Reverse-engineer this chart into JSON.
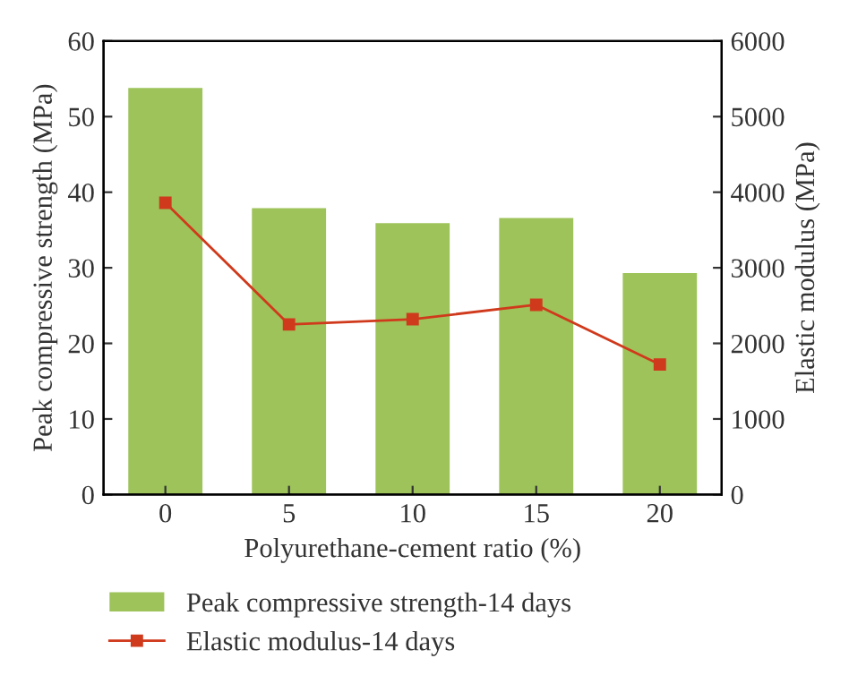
{
  "chart_data": {
    "type": "bar",
    "xlabel": "Polyurethane-cement ratio (%)",
    "ylabel": "Peak compressive strength (MPa)",
    "y2label": "Elastic modulus (MPa)",
    "categories": [
      "0",
      "5",
      "10",
      "15",
      "20"
    ],
    "series": [
      {
        "name": "Peak compressive strength-14 days",
        "color": "#9dc35a",
        "values": [
          53.8,
          37.9,
          35.9,
          36.6,
          29.3
        ]
      },
      {
        "name": "Elastic modulus-14 days",
        "type": "line",
        "axis": "y2",
        "color": "#d03a1c",
        "marker": "square",
        "values": [
          3860,
          2250,
          2320,
          2510,
          1720
        ]
      }
    ],
    "ylim": [
      0,
      60
    ],
    "yticks": [
      0,
      10,
      20,
      30,
      40,
      50,
      60
    ],
    "y2lim": [
      0,
      6000
    ],
    "y2ticks": [
      0,
      1000,
      2000,
      3000,
      4000,
      5000,
      6000
    ],
    "grid": false,
    "legend": "bottom"
  }
}
